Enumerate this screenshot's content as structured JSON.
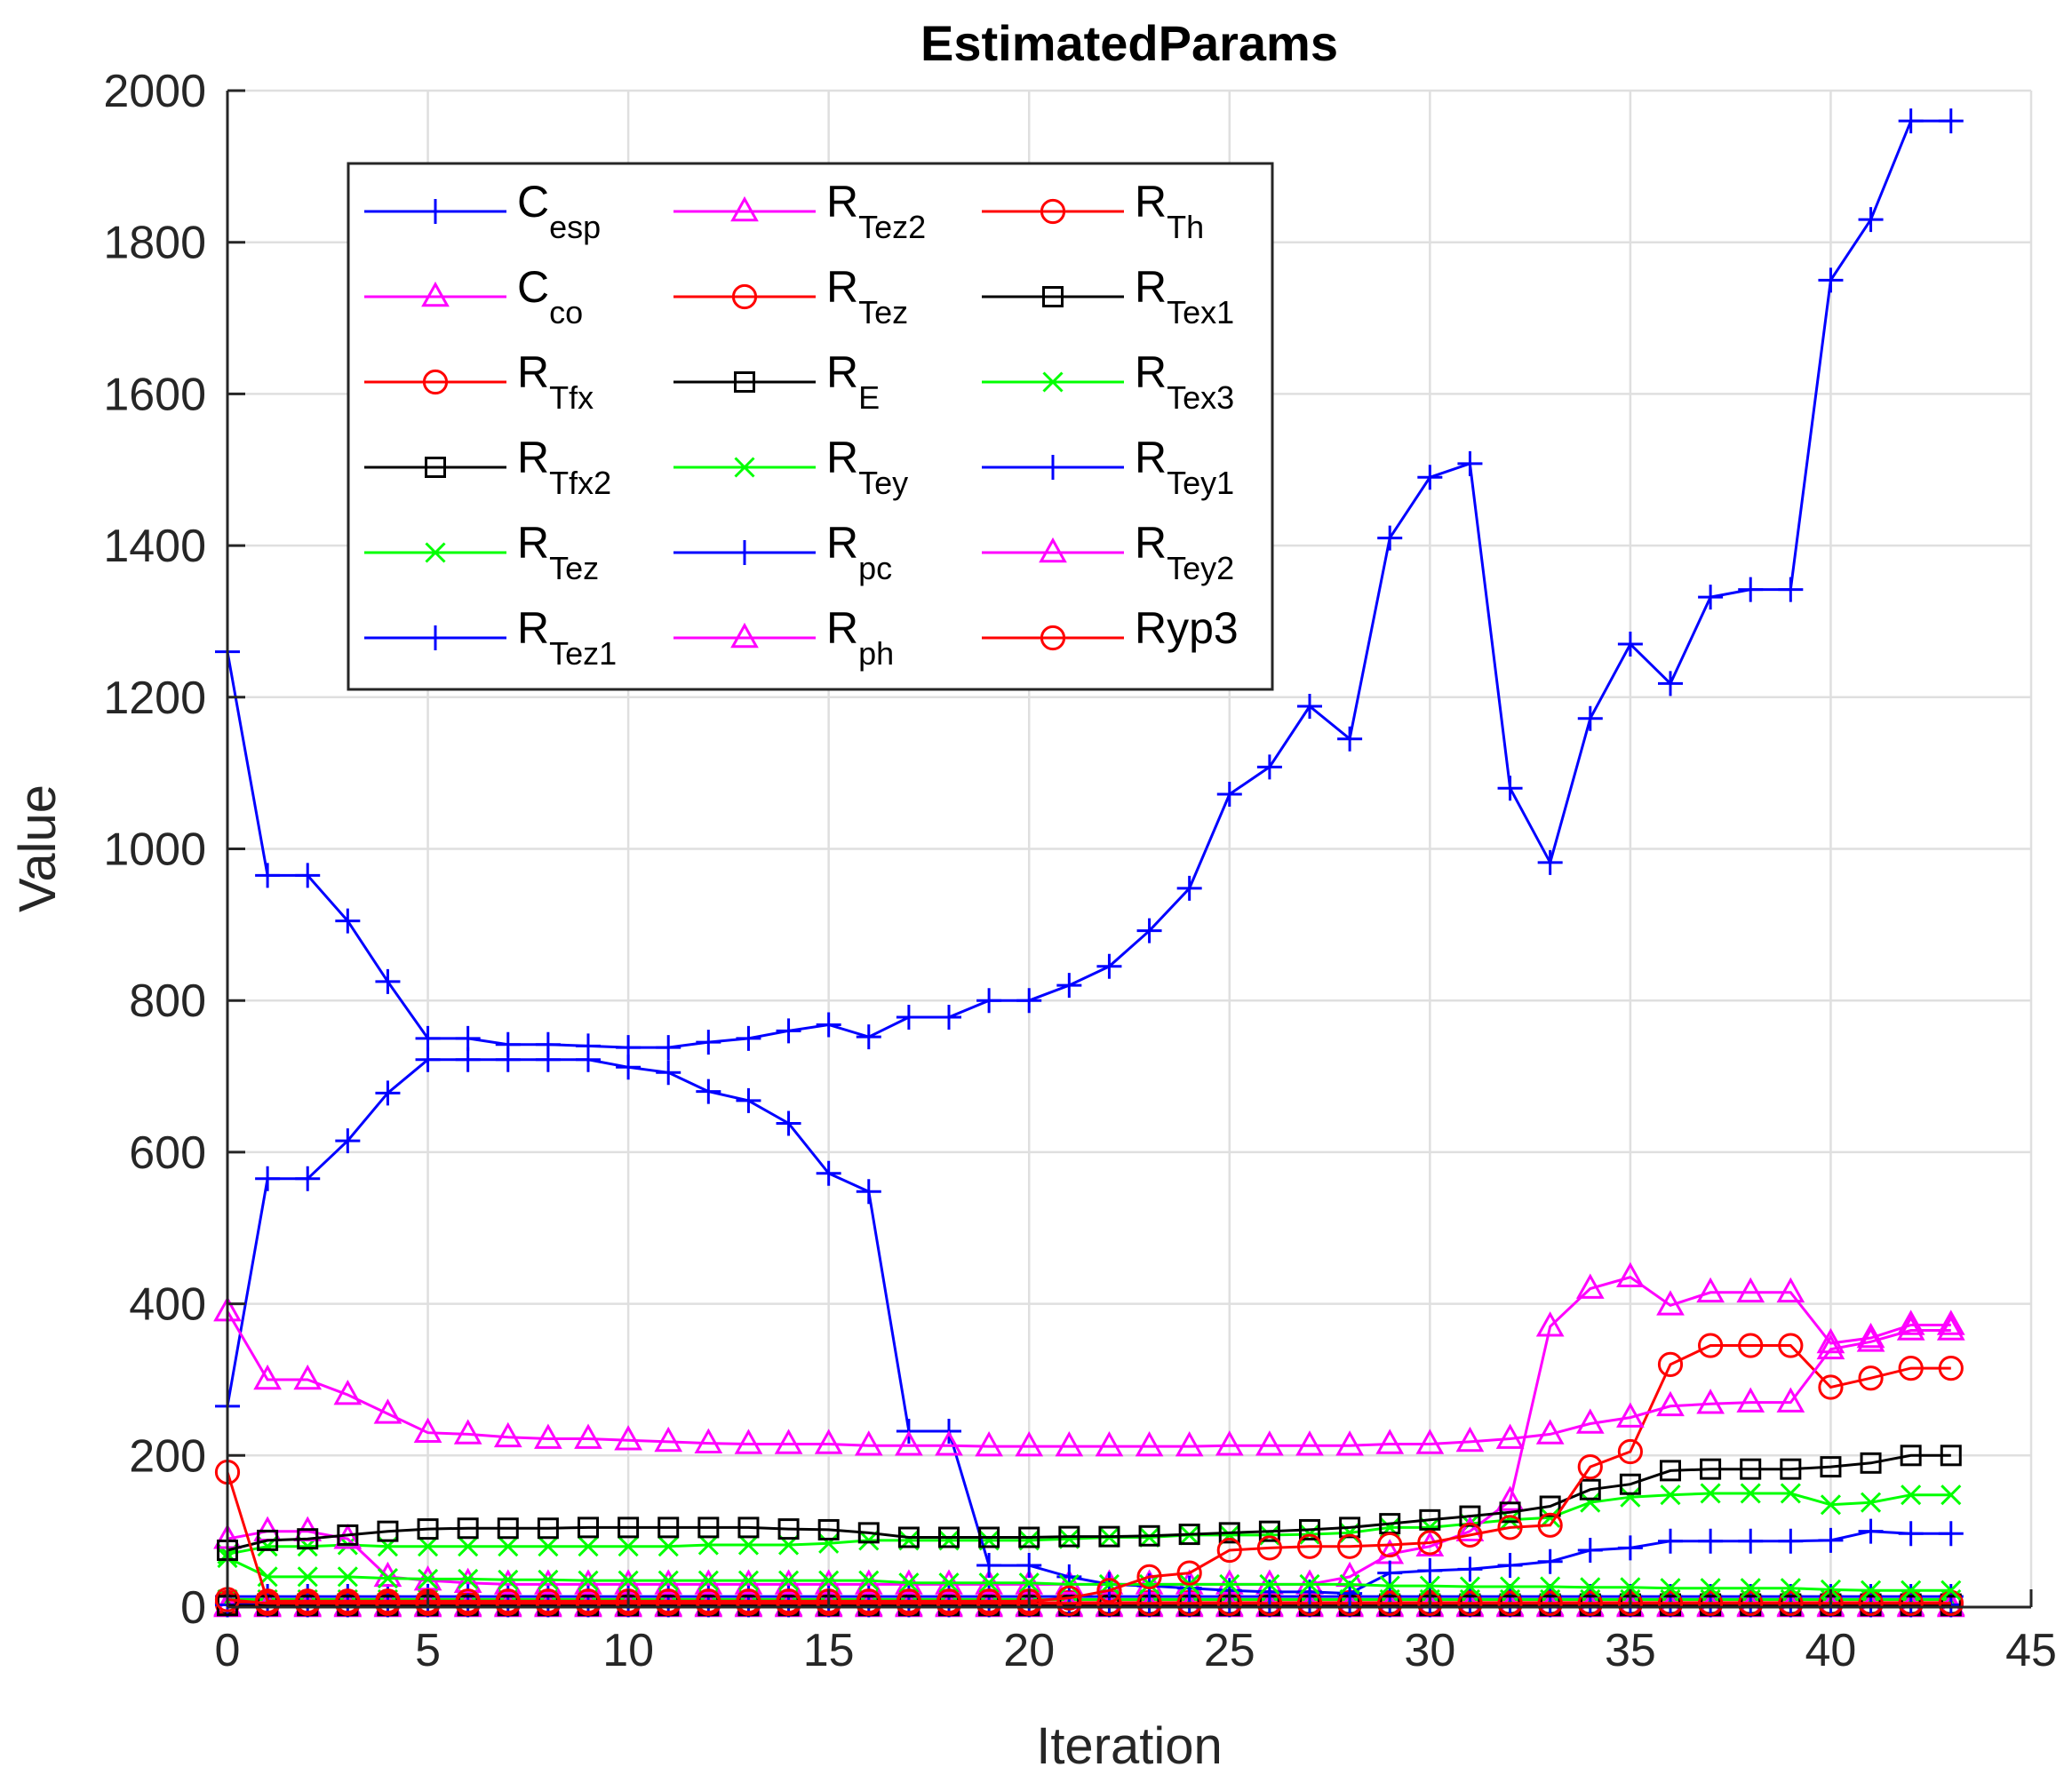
{
  "chart_data": {
    "type": "line",
    "title": "EstimatedParams",
    "xlabel": "Iteration",
    "ylabel": "Value",
    "xlim": [
      0,
      45
    ],
    "ylim": [
      0,
      2000
    ],
    "xticks": [
      0,
      5,
      10,
      15,
      20,
      25,
      30,
      35,
      40,
      45
    ],
    "yticks": [
      0,
      200,
      400,
      600,
      800,
      1000,
      1200,
      1400,
      1600,
      1800,
      2000
    ],
    "grid": true,
    "legend_position": "top-left",
    "legend_columns": 3,
    "x": [
      0,
      1,
      2,
      3,
      4,
      5,
      6,
      7,
      8,
      9,
      10,
      11,
      12,
      13,
      14,
      15,
      16,
      17,
      18,
      19,
      20,
      21,
      22,
      23,
      24,
      25,
      26,
      27,
      28,
      29,
      30,
      31,
      32,
      33,
      34,
      35,
      36,
      37,
      38,
      39,
      40,
      41,
      42,
      43
    ],
    "series": [
      {
        "label": "C_esp",
        "base": "C",
        "sub": "esp",
        "color": "#0000ff",
        "marker": "plus",
        "values": [
          1260,
          965,
          965,
          905,
          825,
          750,
          750,
          742,
          742,
          740,
          738,
          738,
          745,
          750,
          760,
          768,
          752,
          778,
          778,
          800,
          800,
          820,
          845,
          892,
          948,
          1072,
          1108,
          1188,
          1145,
          1410,
          1490,
          1508,
          1080,
          982,
          1172,
          1270,
          1218,
          1332,
          1342,
          1342,
          1750,
          1830,
          1960,
          1960
        ]
      },
      {
        "label": "C_co",
        "base": "C",
        "sub": "co",
        "color": "#ff00ff",
        "marker": "triangle",
        "values": [
          390,
          300,
          300,
          280,
          255,
          230,
          228,
          224,
          222,
          222,
          220,
          218,
          216,
          215,
          215,
          215,
          213,
          213,
          213,
          212,
          212,
          212,
          212,
          212,
          212,
          213,
          213,
          213,
          213,
          215,
          215,
          218,
          222,
          228,
          242,
          250,
          265,
          268,
          270,
          270,
          340,
          350,
          365,
          365
        ]
      },
      {
        "label": "R_Tfx",
        "base": "R",
        "sub": "Tfx",
        "color": "#ff0000",
        "marker": "circle",
        "values": [
          178,
          8,
          8,
          8,
          8,
          8,
          8,
          8,
          8,
          8,
          8,
          8,
          8,
          8,
          8,
          8,
          8,
          8,
          8,
          8,
          8,
          12,
          22,
          40,
          45,
          75,
          78,
          80,
          80,
          82,
          85,
          95,
          105,
          108,
          185,
          205,
          320,
          345,
          345,
          345,
          290,
          302,
          315,
          315
        ]
      },
      {
        "label": "R_Tfx2",
        "base": "R",
        "sub": "Tfx2",
        "color": "#000000",
        "marker": "square",
        "values": [
          75,
          88,
          90,
          95,
          100,
          103,
          104,
          104,
          104,
          105,
          105,
          105,
          105,
          105,
          103,
          102,
          98,
          92,
          92,
          92,
          92,
          93,
          93,
          94,
          96,
          98,
          100,
          102,
          105,
          110,
          115,
          120,
          125,
          133,
          155,
          162,
          180,
          182,
          182,
          182,
          185,
          190,
          200,
          200
        ]
      },
      {
        "label": "R_Tez",
        "base": "R",
        "sub": "Tez",
        "color": "#00ff00",
        "marker": "x",
        "values": [
          65,
          40,
          40,
          40,
          38,
          37,
          37,
          36,
          36,
          35,
          35,
          35,
          35,
          35,
          35,
          35,
          35,
          32,
          32,
          32,
          32,
          30,
          30,
          30,
          30,
          30,
          30,
          30,
          30,
          28,
          28,
          27,
          27,
          27,
          26,
          26,
          25,
          25,
          25,
          25,
          23,
          22,
          22,
          22
        ]
      },
      {
        "label": "R_Tez1",
        "base": "R",
        "sub": "Tez1",
        "color": "#0000ff",
        "marker": "plus",
        "values": [
          265,
          565,
          565,
          615,
          678,
          722,
          722,
          722,
          722,
          722,
          712,
          705,
          680,
          668,
          638,
          572,
          548,
          232,
          232,
          55,
          55,
          40,
          30,
          28,
          25,
          22,
          20,
          20,
          18,
          45,
          48,
          50,
          55,
          60,
          75,
          78,
          87,
          87,
          87,
          87,
          88,
          100,
          97,
          97
        ]
      },
      {
        "label": "R_Tez2",
        "base": "R",
        "sub": "Tez2",
        "color": "#ff00ff",
        "marker": "triangle",
        "values": [
          90,
          100,
          100,
          90,
          40,
          35,
          32,
          30,
          30,
          30,
          30,
          30,
          30,
          30,
          30,
          30,
          30,
          30,
          30,
          30,
          30,
          30,
          30,
          30,
          30,
          30,
          30,
          30,
          40,
          70,
          80,
          100,
          140,
          370,
          420,
          435,
          398,
          415,
          415,
          415,
          348,
          355,
          372,
          372
        ]
      },
      {
        "label": "R_Tez",
        "base": "R",
        "sub": "Tez",
        "color": "#ff0000",
        "marker": "circle",
        "values": [
          10,
          5,
          5,
          5,
          5,
          5,
          5,
          5,
          5,
          5,
          5,
          5,
          5,
          5,
          5,
          5,
          5,
          5,
          5,
          5,
          5,
          5,
          5,
          5,
          5,
          5,
          5,
          5,
          5,
          5,
          5,
          5,
          5,
          5,
          5,
          5,
          5,
          5,
          5,
          5,
          5,
          5,
          5,
          5
        ]
      },
      {
        "label": "R_E",
        "base": "R",
        "sub": "E",
        "color": "#000000",
        "marker": "square",
        "values": [
          2,
          2,
          2,
          2,
          2,
          2,
          2,
          2,
          2,
          2,
          2,
          2,
          2,
          2,
          2,
          2,
          2,
          2,
          2,
          2,
          2,
          2,
          2,
          2,
          2,
          2,
          2,
          2,
          2,
          2,
          2,
          2,
          2,
          2,
          2,
          2,
          2,
          2,
          2,
          2,
          2,
          2,
          2,
          2
        ]
      },
      {
        "label": "R_Tey",
        "base": "R",
        "sub": "Tey",
        "color": "#00ff00",
        "marker": "x",
        "values": [
          70,
          80,
          80,
          82,
          80,
          80,
          80,
          80,
          80,
          80,
          80,
          80,
          82,
          82,
          82,
          84,
          88,
          88,
          88,
          88,
          88,
          90,
          92,
          92,
          95,
          95,
          95,
          96,
          98,
          105,
          105,
          110,
          115,
          118,
          138,
          145,
          148,
          150,
          150,
          150,
          135,
          138,
          148,
          148
        ]
      },
      {
        "label": "R_pc",
        "base": "R",
        "sub": "pc",
        "color": "#0000ff",
        "marker": "plus",
        "values": [
          3,
          3,
          3,
          3,
          3,
          3,
          3,
          3,
          3,
          3,
          3,
          3,
          3,
          3,
          3,
          3,
          3,
          3,
          3,
          3,
          3,
          3,
          3,
          3,
          3,
          3,
          3,
          3,
          3,
          3,
          3,
          3,
          3,
          3,
          3,
          3,
          3,
          3,
          3,
          3,
          3,
          3,
          3,
          3
        ]
      },
      {
        "label": "R_ph",
        "base": "R",
        "sub": "ph",
        "color": "#ff00ff",
        "marker": "triangle",
        "values": [
          0,
          0,
          0,
          0,
          0,
          0,
          0,
          0,
          0,
          0,
          0,
          0,
          0,
          0,
          0,
          0,
          0,
          0,
          0,
          0,
          0,
          0,
          0,
          0,
          0,
          0,
          0,
          0,
          0,
          0,
          0,
          0,
          0,
          0,
          0,
          0,
          0,
          0,
          0,
          0,
          0,
          0,
          0,
          0
        ]
      },
      {
        "label": "R_Th",
        "base": "R",
        "sub": "Th",
        "color": "#ff0000",
        "marker": "circle",
        "values": [
          4,
          4,
          4,
          4,
          4,
          4,
          4,
          4,
          4,
          4,
          4,
          4,
          4,
          4,
          4,
          4,
          4,
          4,
          4,
          4,
          4,
          4,
          4,
          4,
          4,
          4,
          4,
          4,
          4,
          4,
          4,
          4,
          4,
          4,
          4,
          4,
          4,
          4,
          4,
          4,
          4,
          4,
          4,
          4
        ]
      },
      {
        "label": "R_Tex1",
        "base": "R",
        "sub": "Tex1",
        "color": "#000000",
        "marker": "square",
        "values": [
          4,
          4,
          4,
          4,
          4,
          4,
          4,
          4,
          4,
          4,
          4,
          4,
          4,
          4,
          4,
          4,
          4,
          4,
          4,
          4,
          4,
          4,
          4,
          4,
          4,
          4,
          4,
          4,
          4,
          4,
          4,
          4,
          4,
          4,
          4,
          4,
          4,
          4,
          4,
          4,
          4,
          4,
          4,
          4
        ]
      },
      {
        "label": "R_Tex3",
        "base": "R",
        "sub": "Tex3",
        "color": "#00ff00",
        "marker": "x",
        "values": [
          10,
          10,
          10,
          10,
          10,
          10,
          10,
          10,
          10,
          10,
          10,
          10,
          10,
          10,
          10,
          10,
          10,
          10,
          10,
          10,
          10,
          10,
          10,
          10,
          10,
          10,
          10,
          10,
          10,
          10,
          10,
          10,
          10,
          10,
          10,
          10,
          10,
          10,
          10,
          10,
          10,
          10,
          10,
          10
        ]
      },
      {
        "label": "R_Tey1",
        "base": "R",
        "sub": "Tey1",
        "color": "#0000ff",
        "marker": "plus",
        "values": [
          14,
          14,
          14,
          14,
          14,
          14,
          14,
          14,
          14,
          14,
          14,
          14,
          14,
          14,
          14,
          14,
          14,
          14,
          14,
          14,
          14,
          14,
          14,
          14,
          14,
          14,
          14,
          14,
          14,
          14,
          14,
          14,
          14,
          14,
          14,
          14,
          14,
          14,
          14,
          14,
          14,
          14,
          14,
          14
        ]
      },
      {
        "label": "R_Tey2",
        "base": "R",
        "sub": "Tey2",
        "color": "#ff00ff",
        "marker": "triangle",
        "values": [
          2,
          2,
          2,
          2,
          2,
          2,
          2,
          2,
          2,
          2,
          2,
          2,
          2,
          2,
          2,
          2,
          2,
          2,
          2,
          2,
          2,
          2,
          2,
          2,
          2,
          2,
          2,
          2,
          2,
          2,
          2,
          2,
          2,
          2,
          2,
          2,
          2,
          2,
          2,
          2,
          2,
          2,
          2,
          2
        ]
      },
      {
        "label": "Ryp3",
        "base": "Ryp3",
        "sub": "",
        "color": "#ff0000",
        "marker": "circle",
        "values": [
          6,
          6,
          6,
          6,
          6,
          6,
          6,
          6,
          6,
          6,
          6,
          6,
          6,
          6,
          6,
          6,
          6,
          6,
          6,
          6,
          6,
          6,
          6,
          6,
          6,
          6,
          6,
          6,
          6,
          6,
          6,
          6,
          6,
          6,
          6,
          6,
          6,
          6,
          6,
          6,
          6,
          6,
          6,
          6
        ]
      }
    ]
  }
}
